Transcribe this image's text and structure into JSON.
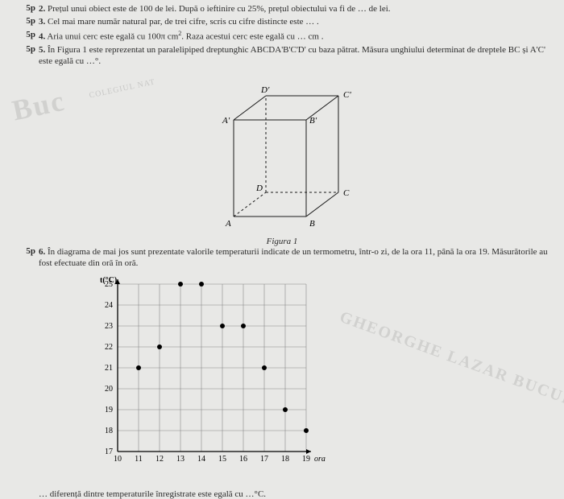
{
  "problems": {
    "p2": {
      "points": "5p",
      "num": "2.",
      "text": "Prețul unui obiect este de 100 de lei. După o ieftinire cu 25%, prețul obiectului va fi de … de lei."
    },
    "p3": {
      "points": "5p",
      "num": "3.",
      "text": "Cel mai mare număr natural par, de trei cifre, scris cu cifre distincte este … ."
    },
    "p4": {
      "points": "5p",
      "num": "4.",
      "text_pre": "Aria unui cerc este egală cu 100π cm",
      "text_post": ". Raza acestui cerc este egală cu … cm ."
    },
    "p5": {
      "points": "5p",
      "num": "5.",
      "text": "În Figura 1 este reprezentat un paralelipiped dreptunghic ABCDA'B'C'D' cu baza pătrat. Măsura unghiului determinat de dreptele BC și A'C' este egală cu …°."
    },
    "p6": {
      "points": "5p",
      "num": "6.",
      "text": "În diagrama de mai jos sunt prezentate valorile temperaturii indicate de un termometru, într-o zi, de la ora 11, până la ora 19. Măsurătorile au fost efectuate din oră în oră."
    }
  },
  "figure1_caption": "Figura 1",
  "chart": {
    "y_label": "t(°C)",
    "x_label": "ora",
    "y_ticks": [
      17,
      18,
      19,
      20,
      21,
      22,
      23,
      24,
      25
    ],
    "x_ticks": [
      10,
      11,
      12,
      13,
      14,
      15,
      16,
      17,
      18,
      19
    ],
    "grid_color": "#888888",
    "bg_color": "#f0f0ee",
    "cell_size": 26,
    "points": [
      {
        "x": 11,
        "y": 21
      },
      {
        "x": 12,
        "y": 22
      },
      {
        "x": 13,
        "y": 25
      },
      {
        "x": 14,
        "y": 25
      },
      {
        "x": 15,
        "y": 23
      },
      {
        "x": 16,
        "y": 23
      },
      {
        "x": 17,
        "y": 21
      },
      {
        "x": 18,
        "y": 19
      },
      {
        "x": 19,
        "y": 18
      }
    ]
  },
  "cube": {
    "labels": {
      "A": "A",
      "B": "B",
      "C": "C",
      "D": "D",
      "Ap": "A'",
      "Bp": "B'",
      "Cp": "C'",
      "Dp": "D'"
    },
    "stroke": "#1a1a1a"
  },
  "watermarks": {
    "big": "Buc",
    "small": "COLEGIUL NAT",
    "diag": "GHEORGHE LAZAR BUCURES"
  },
  "fragment_bottom": "… diferență dintre temperaturile înregistrate este egală cu …°C."
}
